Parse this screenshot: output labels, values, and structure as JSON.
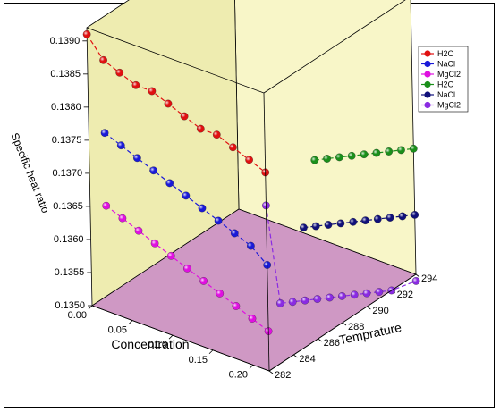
{
  "chart_data": {
    "type": "scatter",
    "subtype": "3d-scatter-with-dashed-lines",
    "xlabel": "Concentration",
    "ylabel": "Temprature",
    "zlabel": "Specific heat ratio",
    "xlim": [
      0.0,
      0.22
    ],
    "ylim": [
      282,
      294
    ],
    "zlim": [
      0.135,
      0.1392
    ],
    "x_ticks": [
      "0.00",
      "0.05",
      "0.10",
      "0.15",
      "0.20"
    ],
    "y_ticks": [
      "282",
      "284",
      "286",
      "288",
      "290",
      "292",
      "294"
    ],
    "z_ticks": [
      "0.1350",
      "0.1355",
      "0.1360",
      "0.1365",
      "0.1370",
      "0.1375",
      "0.1380",
      "0.1385",
      "0.1390"
    ],
    "legend_position": "top-right",
    "series": [
      {
        "name": "H2O",
        "color": "#e01010",
        "group": "concentration",
        "x": [
          0.0,
          0.02,
          0.04,
          0.06,
          0.08,
          0.1,
          0.12,
          0.14,
          0.16,
          0.18,
          0.2,
          0.22
        ],
        "y": [
          282,
          282,
          282,
          282,
          282,
          282,
          282,
          282,
          282,
          282,
          282,
          282
        ],
        "z": [
          0.1391,
          0.1388,
          0.1387,
          0.1386,
          0.1386,
          0.1385,
          0.1384,
          0.1383,
          0.1383,
          0.1382,
          0.1381,
          0.138
        ]
      },
      {
        "name": "NaCl",
        "color": "#1a1ad8",
        "group": "concentration",
        "x": [
          0.02,
          0.04,
          0.06,
          0.08,
          0.1,
          0.12,
          0.14,
          0.16,
          0.18,
          0.2,
          0.22
        ],
        "y": [
          282,
          282,
          282,
          282,
          282,
          282,
          282,
          282,
          282,
          282,
          282
        ],
        "z": [
          0.1377,
          0.1376,
          0.1375,
          0.1374,
          0.1373,
          0.1372,
          0.1371,
          0.137,
          0.1369,
          0.1368,
          0.1366
        ]
      },
      {
        "name": "MgCl2",
        "color": "#e010e0",
        "group": "concentration",
        "x": [
          0.02,
          0.04,
          0.06,
          0.08,
          0.1,
          0.12,
          0.14,
          0.16,
          0.18,
          0.2,
          0.22
        ],
        "y": [
          282,
          282,
          282,
          282,
          282,
          282,
          282,
          282,
          282,
          282,
          282
        ],
        "z": [
          0.1366,
          0.1365,
          0.1364,
          0.1363,
          0.1362,
          0.1361,
          0.136,
          0.1359,
          0.1358,
          0.1357,
          0.1356
        ]
      },
      {
        "name": "H2O",
        "color": "#1a8f1a",
        "group": "temperature",
        "x": [
          0.22,
          0.22,
          0.22,
          0.22,
          0.22,
          0.22,
          0.22,
          0.22,
          0.22
        ],
        "y": [
          286,
          287,
          288,
          289,
          290,
          291,
          292,
          293,
          294
        ],
        "z": [
          0.1377,
          0.1376,
          0.1375,
          0.1374,
          0.1373,
          0.1372,
          0.1371,
          0.137,
          0.1369
        ]
      },
      {
        "name": "NaCl",
        "color": "#10107a",
        "group": "temperature",
        "x": [
          0.22,
          0.22,
          0.22,
          0.22,
          0.22,
          0.22,
          0.22,
          0.22,
          0.22,
          0.22
        ],
        "y": [
          285,
          286,
          287,
          288,
          289,
          290,
          291,
          292,
          293,
          294
        ],
        "z": [
          0.1368,
          0.1367,
          0.1366,
          0.1365,
          0.1364,
          0.1363,
          0.1362,
          0.1361,
          0.136,
          0.1359
        ]
      },
      {
        "name": "MgCl2",
        "color": "#8a2be2",
        "group": "temperature",
        "x": [
          0.22,
          0.22,
          0.22,
          0.22,
          0.22,
          0.22,
          0.22,
          0.22,
          0.22,
          0.22,
          0.22,
          0.22
        ],
        "y": [
          282,
          283,
          284,
          285,
          286,
          287,
          288,
          289,
          290,
          291,
          292,
          294
        ],
        "z": [
          0.1375,
          0.1359,
          0.1358,
          0.1357,
          0.1356,
          0.1355,
          0.1354,
          0.1353,
          0.1352,
          0.1351,
          0.135,
          0.1349
        ]
      }
    ]
  }
}
